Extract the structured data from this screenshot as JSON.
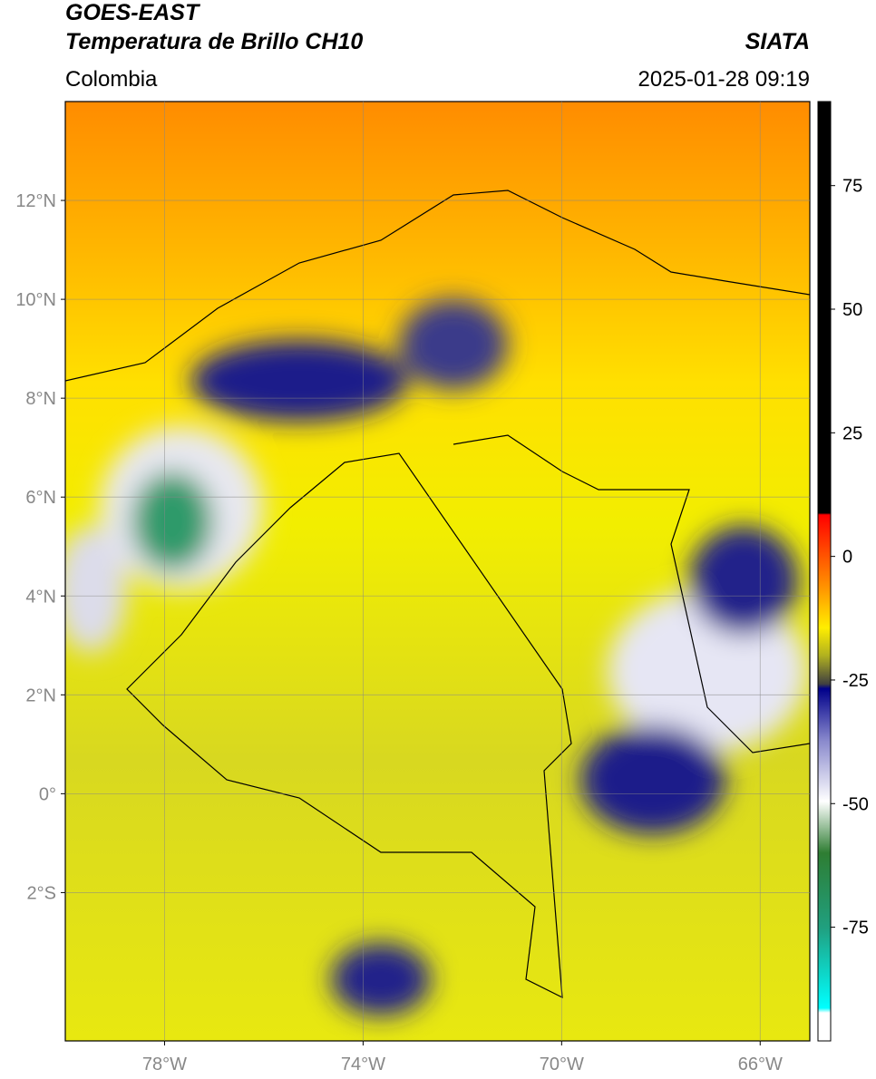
{
  "header": {
    "title1": "GOES-EAST",
    "title2": "Temperatura de Brillo CH10",
    "region": "Colombia",
    "agency": "SIATA",
    "datetime": "2025-01-28 09:19"
  },
  "map": {
    "lonlim": [
      -80,
      -65
    ],
    "latlim": [
      -5,
      14
    ],
    "xticks": [
      {
        "value": -78,
        "label": "78°W"
      },
      {
        "value": -74,
        "label": "74°W"
      },
      {
        "value": -70,
        "label": "70°W"
      },
      {
        "value": -66,
        "label": "66°W"
      }
    ],
    "yticks": [
      {
        "value": 12,
        "label": "12°N"
      },
      {
        "value": 10,
        "label": "10°N"
      },
      {
        "value": 8,
        "label": "8°N"
      },
      {
        "value": 6,
        "label": "6°N"
      },
      {
        "value": 4,
        "label": "4°N"
      },
      {
        "value": 2,
        "label": "2°N"
      },
      {
        "value": 0,
        "label": "0°"
      },
      {
        "value": -2,
        "label": "2°S"
      }
    ],
    "grid": true
  },
  "colorbar": {
    "lim": [
      -98,
      92
    ],
    "ticks": [
      75,
      50,
      25,
      0,
      -25,
      -50,
      -75
    ]
  }
}
